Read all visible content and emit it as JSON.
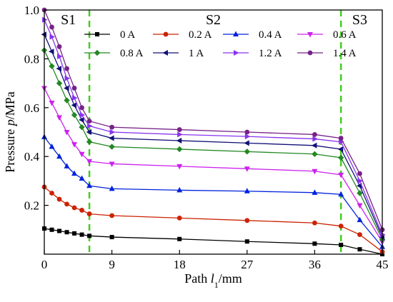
{
  "chart_data": {
    "type": "line",
    "xlabel_prefix": "Path ",
    "xlabel_var": "l",
    "xlabel_sub": "1",
    "xlabel_suffix": "/mm",
    "ylabel_prefix": "Pressure ",
    "ylabel_var": "p",
    "ylabel_suffix": "/MPa",
    "xlim": [
      0,
      45
    ],
    "ylim": [
      0,
      1.0
    ],
    "xticks": [
      0,
      9,
      18,
      27,
      36,
      45
    ],
    "xtick_labels": [
      "0",
      "9",
      "18",
      "27",
      "36",
      "45"
    ],
    "yticks": [
      0.2,
      0.4,
      0.6,
      0.8,
      1.0
    ],
    "ytick_labels": [
      "0.2",
      "0.4",
      "0.6",
      "0.8",
      "1.0"
    ],
    "grid": false,
    "legend_position": "top-right",
    "regions": [
      {
        "label": "S1",
        "x_label": 3.2
      },
      {
        "label": "S2",
        "x_label": 22.5
      },
      {
        "label": "S3",
        "x_label": 42.0
      }
    ],
    "boundaries": [
      6.0,
      39.5
    ],
    "boundary_color": "#44cc22",
    "series": [
      {
        "name": "0 A",
        "color": "#000000",
        "marker": "square",
        "x": [
          0,
          1,
          2,
          3,
          4,
          5,
          6,
          9,
          18,
          27,
          36,
          39.5,
          42,
          45
        ],
        "y": [
          0.105,
          0.1,
          0.095,
          0.09,
          0.085,
          0.08,
          0.075,
          0.07,
          0.062,
          0.052,
          0.043,
          0.038,
          0.02,
          0.0
        ]
      },
      {
        "name": "0.2 A",
        "color": "#cc2200",
        "marker": "circle",
        "x": [
          0,
          1,
          2,
          3,
          4,
          5,
          6,
          9,
          18,
          27,
          36,
          39.5,
          42,
          45
        ],
        "y": [
          0.275,
          0.25,
          0.225,
          0.205,
          0.19,
          0.18,
          0.165,
          0.158,
          0.148,
          0.138,
          0.128,
          0.115,
          0.08,
          0.01
        ]
      },
      {
        "name": "0.4 A",
        "color": "#0022dd",
        "marker": "triangle-up",
        "x": [
          0,
          1,
          2,
          3,
          4,
          5,
          6,
          9,
          18,
          27,
          36,
          39.5,
          42,
          45
        ],
        "y": [
          0.48,
          0.44,
          0.4,
          0.36,
          0.33,
          0.31,
          0.28,
          0.268,
          0.262,
          0.258,
          0.252,
          0.245,
          0.14,
          0.03
        ]
      },
      {
        "name": "0.6 A",
        "color": "#cc22ee",
        "marker": "triangle-down",
        "x": [
          0,
          1,
          2,
          3,
          4,
          5,
          6,
          9,
          18,
          27,
          36,
          39.5,
          42,
          45
        ],
        "y": [
          0.68,
          0.62,
          0.56,
          0.5,
          0.45,
          0.41,
          0.38,
          0.37,
          0.36,
          0.35,
          0.34,
          0.325,
          0.2,
          0.05
        ]
      },
      {
        "name": "0.8 A",
        "color": "#228822",
        "marker": "diamond",
        "x": [
          0,
          1,
          2,
          3,
          4,
          5,
          6,
          9,
          18,
          27,
          36,
          39.5,
          42,
          45
        ],
        "y": [
          0.835,
          0.77,
          0.7,
          0.63,
          0.57,
          0.52,
          0.46,
          0.44,
          0.43,
          0.42,
          0.41,
          0.395,
          0.25,
          0.06
        ]
      },
      {
        "name": "1 A",
        "color": "#111177",
        "marker": "triangle-left",
        "x": [
          0,
          1,
          2,
          3,
          4,
          5,
          6,
          9,
          18,
          27,
          36,
          39.5,
          42,
          45
        ],
        "y": [
          0.9,
          0.83,
          0.76,
          0.68,
          0.61,
          0.55,
          0.5,
          0.475,
          0.465,
          0.455,
          0.445,
          0.43,
          0.28,
          0.07
        ]
      },
      {
        "name": "1.2 A",
        "color": "#8833ee",
        "marker": "triangle-right",
        "x": [
          0,
          1,
          2,
          3,
          4,
          5,
          6,
          9,
          18,
          27,
          36,
          39.5,
          42,
          45
        ],
        "y": [
          0.96,
          0.89,
          0.81,
          0.72,
          0.64,
          0.57,
          0.525,
          0.5,
          0.49,
          0.482,
          0.472,
          0.46,
          0.3,
          0.08
        ]
      },
      {
        "name": "1.4 A",
        "color": "#772288",
        "marker": "circle",
        "x": [
          0,
          1,
          2,
          3,
          4,
          5,
          6,
          9,
          18,
          27,
          36,
          39.5,
          42,
          45
        ],
        "y": [
          1.0,
          0.93,
          0.85,
          0.76,
          0.68,
          0.6,
          0.545,
          0.52,
          0.51,
          0.5,
          0.49,
          0.475,
          0.33,
          0.1
        ]
      }
    ]
  }
}
